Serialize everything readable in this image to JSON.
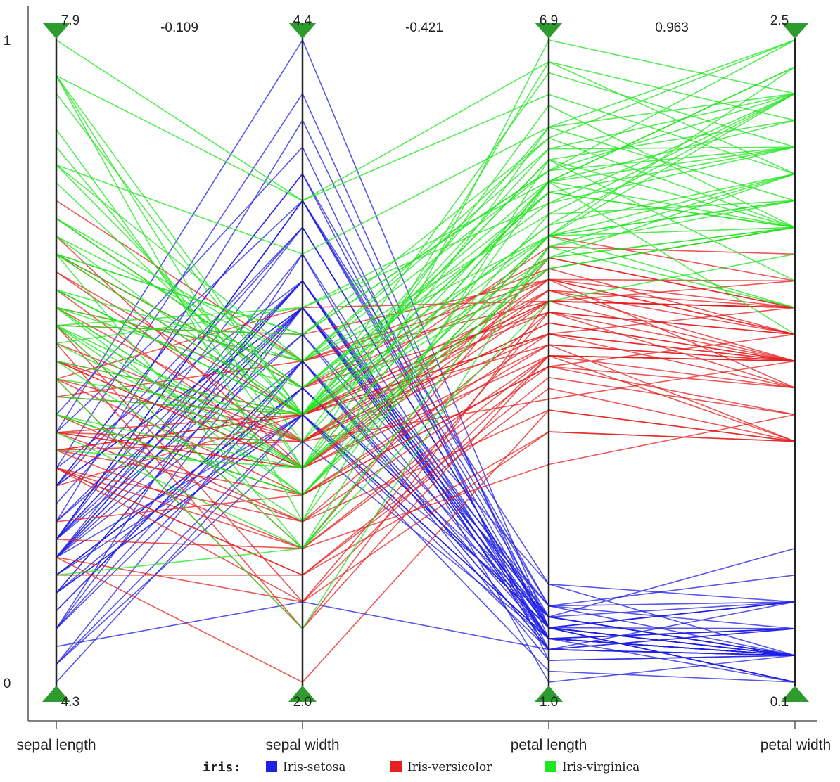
{
  "chart_data": {
    "type": "parallel-coordinates",
    "title": "",
    "axes": [
      {
        "name": "sepal length",
        "max_label": "7.9",
        "min_label": "4.3",
        "min": 4.3,
        "max": 7.9
      },
      {
        "name": "sepal width",
        "max_label": "4.4",
        "min_label": "2.0",
        "min": 2.0,
        "max": 4.4
      },
      {
        "name": "petal length",
        "max_label": "6.9",
        "min_label": "1.0",
        "min": 1.0,
        "max": 6.9
      },
      {
        "name": "petal width",
        "max_label": "2.5",
        "min_label": "0.1",
        "min": 0.1,
        "max": 2.5
      }
    ],
    "correlations": [
      "-0.109",
      "-0.421",
      "0.963"
    ],
    "y_norm_labels": {
      "top": "1",
      "bottom": "0"
    },
    "legend": {
      "title": "iris:",
      "entries": [
        {
          "name": "Iris-setosa",
          "color": "#1f1fe6"
        },
        {
          "name": "Iris-versicolor",
          "color": "#e61f1f"
        },
        {
          "name": "Iris-virginica",
          "color": "#1fe61f"
        }
      ]
    },
    "series": [
      {
        "name": "Iris-setosa",
        "color": "#1f1fe6",
        "values": [
          [
            5.1,
            3.5,
            1.4,
            0.2
          ],
          [
            4.9,
            3.0,
            1.4,
            0.2
          ],
          [
            4.7,
            3.2,
            1.3,
            0.2
          ],
          [
            4.6,
            3.1,
            1.5,
            0.2
          ],
          [
            5.0,
            3.6,
            1.4,
            0.2
          ],
          [
            5.4,
            3.9,
            1.7,
            0.4
          ],
          [
            4.6,
            3.4,
            1.4,
            0.3
          ],
          [
            5.0,
            3.4,
            1.5,
            0.2
          ],
          [
            4.4,
            2.9,
            1.4,
            0.2
          ],
          [
            4.9,
            3.1,
            1.5,
            0.1
          ],
          [
            5.4,
            3.7,
            1.5,
            0.2
          ],
          [
            4.8,
            3.4,
            1.6,
            0.2
          ],
          [
            4.8,
            3.0,
            1.4,
            0.1
          ],
          [
            4.3,
            3.0,
            1.1,
            0.1
          ],
          [
            5.8,
            4.0,
            1.2,
            0.2
          ],
          [
            5.7,
            4.4,
            1.5,
            0.4
          ],
          [
            5.4,
            3.9,
            1.3,
            0.4
          ],
          [
            5.1,
            3.5,
            1.4,
            0.3
          ],
          [
            5.7,
            3.8,
            1.7,
            0.3
          ],
          [
            5.1,
            3.8,
            1.5,
            0.3
          ],
          [
            5.4,
            3.4,
            1.7,
            0.2
          ],
          [
            5.1,
            3.7,
            1.5,
            0.4
          ],
          [
            4.6,
            3.6,
            1.0,
            0.2
          ],
          [
            5.1,
            3.3,
            1.7,
            0.5
          ],
          [
            4.8,
            3.4,
            1.9,
            0.2
          ],
          [
            5.0,
            3.0,
            1.6,
            0.2
          ],
          [
            5.0,
            3.4,
            1.6,
            0.4
          ],
          [
            5.2,
            3.5,
            1.5,
            0.2
          ],
          [
            5.2,
            3.4,
            1.4,
            0.2
          ],
          [
            4.7,
            3.2,
            1.6,
            0.2
          ],
          [
            4.8,
            3.1,
            1.6,
            0.2
          ],
          [
            5.4,
            3.4,
            1.5,
            0.4
          ],
          [
            5.2,
            4.1,
            1.5,
            0.1
          ],
          [
            5.5,
            4.2,
            1.4,
            0.2
          ],
          [
            4.9,
            3.1,
            1.5,
            0.1
          ],
          [
            5.0,
            3.2,
            1.2,
            0.2
          ],
          [
            5.5,
            3.5,
            1.3,
            0.2
          ],
          [
            4.9,
            3.1,
            1.5,
            0.1
          ],
          [
            4.4,
            3.0,
            1.3,
            0.2
          ],
          [
            5.1,
            3.4,
            1.5,
            0.2
          ],
          [
            5.0,
            3.5,
            1.3,
            0.3
          ],
          [
            4.5,
            2.3,
            1.3,
            0.3
          ],
          [
            4.4,
            3.2,
            1.3,
            0.2
          ],
          [
            5.0,
            3.5,
            1.6,
            0.6
          ],
          [
            5.1,
            3.8,
            1.9,
            0.4
          ],
          [
            4.8,
            3.0,
            1.4,
            0.3
          ],
          [
            5.1,
            3.8,
            1.6,
            0.2
          ],
          [
            4.6,
            3.2,
            1.4,
            0.2
          ],
          [
            5.3,
            3.7,
            1.5,
            0.2
          ],
          [
            5.0,
            3.3,
            1.4,
            0.2
          ]
        ]
      },
      {
        "name": "Iris-versicolor",
        "color": "#e61f1f",
        "values": [
          [
            7.0,
            3.2,
            4.7,
            1.4
          ],
          [
            6.4,
            3.2,
            4.5,
            1.5
          ],
          [
            6.9,
            3.1,
            4.9,
            1.5
          ],
          [
            5.5,
            2.3,
            4.0,
            1.3
          ],
          [
            6.5,
            2.8,
            4.6,
            1.5
          ],
          [
            5.7,
            2.8,
            4.5,
            1.3
          ],
          [
            6.3,
            3.3,
            4.7,
            1.6
          ],
          [
            4.9,
            2.4,
            3.3,
            1.0
          ],
          [
            6.6,
            2.9,
            4.6,
            1.3
          ],
          [
            5.2,
            2.7,
            3.9,
            1.4
          ],
          [
            5.0,
            2.0,
            3.5,
            1.0
          ],
          [
            5.9,
            3.0,
            4.2,
            1.5
          ],
          [
            6.0,
            2.2,
            4.0,
            1.0
          ],
          [
            6.1,
            2.9,
            4.7,
            1.4
          ],
          [
            5.6,
            2.9,
            3.6,
            1.3
          ],
          [
            6.7,
            3.1,
            4.4,
            1.4
          ],
          [
            5.6,
            3.0,
            4.5,
            1.5
          ],
          [
            5.8,
            2.7,
            4.1,
            1.0
          ],
          [
            6.2,
            2.2,
            4.5,
            1.5
          ],
          [
            5.6,
            2.5,
            3.9,
            1.1
          ],
          [
            5.9,
            3.2,
            4.8,
            1.8
          ],
          [
            6.1,
            2.8,
            4.0,
            1.3
          ],
          [
            6.3,
            2.5,
            4.9,
            1.5
          ],
          [
            6.1,
            2.8,
            4.7,
            1.2
          ],
          [
            6.4,
            2.9,
            4.3,
            1.3
          ],
          [
            6.6,
            3.0,
            4.4,
            1.4
          ],
          [
            6.8,
            2.8,
            4.8,
            1.4
          ],
          [
            6.7,
            3.0,
            5.0,
            1.7
          ],
          [
            6.0,
            2.9,
            4.5,
            1.5
          ],
          [
            5.7,
            2.6,
            3.5,
            1.0
          ],
          [
            5.5,
            2.4,
            3.8,
            1.1
          ],
          [
            5.5,
            2.4,
            3.7,
            1.0
          ],
          [
            5.8,
            2.7,
            3.9,
            1.2
          ],
          [
            6.0,
            2.7,
            5.1,
            1.6
          ],
          [
            5.4,
            3.0,
            4.5,
            1.5
          ],
          [
            6.0,
            3.4,
            4.5,
            1.6
          ],
          [
            6.7,
            3.1,
            4.7,
            1.5
          ],
          [
            6.3,
            2.3,
            4.4,
            1.3
          ],
          [
            5.6,
            3.0,
            4.1,
            1.3
          ],
          [
            5.5,
            2.5,
            4.0,
            1.3
          ],
          [
            5.5,
            2.6,
            4.4,
            1.2
          ],
          [
            6.1,
            3.0,
            4.6,
            1.4
          ],
          [
            5.8,
            2.6,
            4.0,
            1.2
          ],
          [
            5.0,
            2.3,
            3.3,
            1.0
          ],
          [
            5.6,
            2.7,
            4.2,
            1.3
          ],
          [
            5.7,
            3.0,
            4.2,
            1.2
          ],
          [
            5.7,
            2.9,
            4.2,
            1.3
          ],
          [
            6.2,
            2.9,
            4.3,
            1.3
          ],
          [
            5.1,
            2.5,
            3.0,
            1.1
          ],
          [
            5.7,
            2.8,
            4.1,
            1.3
          ]
        ]
      },
      {
        "name": "Iris-virginica",
        "color": "#1fe61f",
        "values": [
          [
            6.3,
            3.3,
            6.0,
            2.5
          ],
          [
            5.8,
            2.7,
            5.1,
            1.9
          ],
          [
            7.1,
            3.0,
            5.9,
            2.1
          ],
          [
            6.3,
            2.9,
            5.6,
            1.8
          ],
          [
            6.5,
            3.0,
            5.8,
            2.2
          ],
          [
            7.6,
            3.0,
            6.6,
            2.1
          ],
          [
            4.9,
            2.5,
            4.5,
            1.7
          ],
          [
            7.3,
            2.9,
            6.3,
            1.8
          ],
          [
            6.7,
            2.5,
            5.8,
            1.8
          ],
          [
            7.2,
            3.6,
            6.1,
            2.5
          ],
          [
            6.5,
            3.2,
            5.1,
            2.0
          ],
          [
            6.4,
            2.7,
            5.3,
            1.9
          ],
          [
            6.8,
            3.0,
            5.5,
            2.1
          ],
          [
            5.7,
            2.5,
            5.0,
            2.0
          ],
          [
            5.8,
            2.8,
            5.1,
            2.4
          ],
          [
            6.4,
            3.2,
            5.3,
            2.3
          ],
          [
            6.5,
            3.0,
            5.5,
            1.8
          ],
          [
            7.7,
            3.8,
            6.7,
            2.2
          ],
          [
            7.7,
            2.6,
            6.9,
            2.3
          ],
          [
            6.0,
            2.2,
            5.0,
            1.5
          ],
          [
            6.9,
            3.2,
            5.7,
            2.3
          ],
          [
            5.6,
            2.8,
            4.9,
            2.0
          ],
          [
            7.7,
            2.8,
            6.7,
            2.0
          ],
          [
            6.3,
            2.7,
            4.9,
            1.8
          ],
          [
            6.7,
            3.3,
            5.7,
            2.1
          ],
          [
            7.2,
            3.2,
            6.0,
            1.8
          ],
          [
            6.2,
            2.8,
            4.8,
            1.8
          ],
          [
            6.1,
            3.0,
            4.9,
            1.8
          ],
          [
            6.4,
            2.8,
            5.6,
            2.1
          ],
          [
            7.2,
            3.0,
            5.8,
            1.6
          ],
          [
            7.4,
            2.8,
            6.1,
            1.9
          ],
          [
            7.9,
            3.8,
            6.4,
            2.0
          ],
          [
            6.4,
            2.8,
            5.6,
            2.2
          ],
          [
            6.3,
            2.8,
            5.1,
            1.5
          ],
          [
            6.1,
            2.6,
            5.6,
            1.4
          ],
          [
            7.7,
            3.0,
            6.1,
            2.3
          ],
          [
            6.3,
            3.4,
            5.6,
            2.4
          ],
          [
            6.4,
            3.1,
            5.5,
            1.8
          ],
          [
            6.0,
            3.0,
            4.8,
            1.8
          ],
          [
            6.9,
            3.1,
            5.4,
            2.1
          ],
          [
            6.7,
            3.1,
            5.6,
            2.4
          ],
          [
            6.9,
            3.1,
            5.1,
            2.3
          ],
          [
            5.8,
            2.7,
            5.1,
            1.9
          ],
          [
            6.8,
            3.2,
            5.9,
            2.3
          ],
          [
            6.7,
            3.3,
            5.7,
            2.5
          ],
          [
            6.7,
            3.0,
            5.2,
            2.3
          ],
          [
            6.3,
            2.5,
            5.0,
            1.9
          ],
          [
            6.5,
            3.0,
            5.2,
            2.0
          ],
          [
            6.2,
            3.4,
            5.4,
            2.3
          ],
          [
            5.9,
            3.0,
            5.1,
            1.8
          ]
        ]
      }
    ]
  }
}
